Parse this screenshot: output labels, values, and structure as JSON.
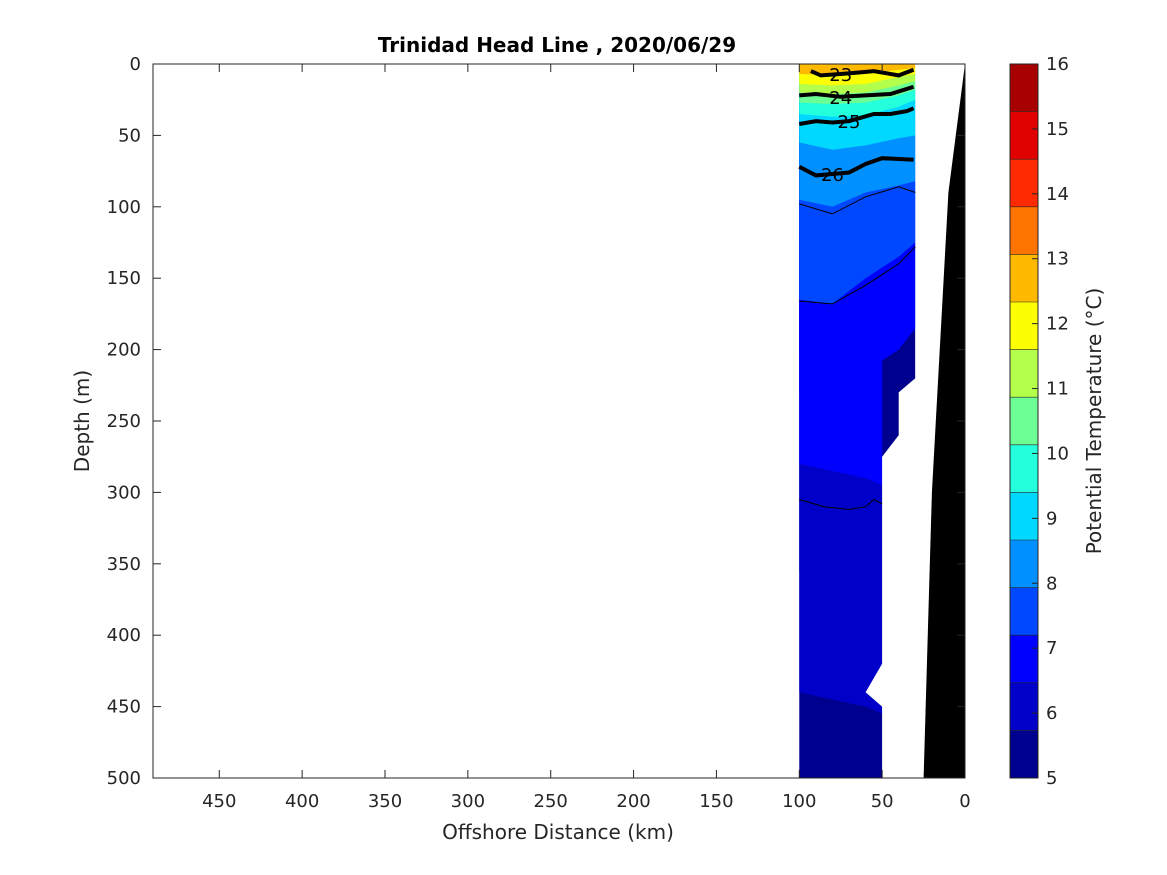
{
  "chart_data": {
    "type": "contour",
    "title": "Trinidad Head Line , 2020/06/29",
    "xlabel": "Offshore Distance (km)",
    "ylabel": "Depth (m)",
    "xlim": [
      490,
      0
    ],
    "ylim": [
      0,
      500
    ],
    "x_reversed": true,
    "y_reversed": true,
    "x_ticks": [
      450,
      400,
      350,
      300,
      250,
      200,
      150,
      100,
      50,
      0
    ],
    "y_ticks": [
      0,
      50,
      100,
      150,
      200,
      250,
      300,
      350,
      400,
      450,
      500
    ],
    "colorbar": {
      "label": "Potential Temperature (°C)",
      "min": 5,
      "max": 16,
      "ticks": [
        5,
        6,
        7,
        8,
        9,
        10,
        11,
        12,
        13,
        14,
        15,
        16
      ],
      "colors": [
        "#00008f",
        "#0000c8",
        "#0000ff",
        "#0048ff",
        "#0090ff",
        "#00d8ff",
        "#24ffdc",
        "#6cff94",
        "#b4ff4c",
        "#fcff04",
        "#ffba00",
        "#ff7300",
        "#ff2a00",
        "#e10000",
        "#a80000"
      ]
    },
    "temperature_layers": [
      {
        "temp": 5.5,
        "depth_profile": [
          [
            100,
            440
          ],
          [
            80,
            445
          ],
          [
            60,
            450
          ],
          [
            50,
            455
          ]
        ]
      },
      {
        "temp": 6.0,
        "depth_profile": [
          [
            100,
            355
          ],
          [
            80,
            365
          ],
          [
            60,
            375
          ],
          [
            50,
            380
          ]
        ]
      },
      {
        "temp": 6.5,
        "depth_profile": [
          [
            100,
            280
          ],
          [
            80,
            285
          ],
          [
            60,
            290
          ],
          [
            50,
            295
          ]
        ]
      },
      {
        "temp": 7.0,
        "depth_profile": [
          [
            100,
            230
          ],
          [
            80,
            225
          ],
          [
            60,
            215
          ],
          [
            40,
            200
          ],
          [
            30,
            185
          ]
        ]
      },
      {
        "temp": 7.5,
        "depth_profile": [
          [
            100,
            165
          ],
          [
            80,
            168
          ],
          [
            60,
            150
          ],
          [
            40,
            135
          ],
          [
            30,
            125
          ]
        ]
      },
      {
        "temp": 8.0,
        "depth_profile": [
          [
            100,
            120
          ],
          [
            80,
            125
          ],
          [
            60,
            110
          ],
          [
            40,
            100
          ],
          [
            30,
            95
          ]
        ]
      },
      {
        "temp": 8.5,
        "depth_profile": [
          [
            100,
            95
          ],
          [
            80,
            100
          ],
          [
            60,
            90
          ],
          [
            40,
            85
          ],
          [
            30,
            82
          ]
        ]
      },
      {
        "temp": 9.0,
        "depth_profile": [
          [
            100,
            72
          ],
          [
            80,
            80
          ],
          [
            60,
            72
          ],
          [
            40,
            68
          ],
          [
            30,
            66
          ]
        ]
      },
      {
        "temp": 9.5,
        "depth_profile": [
          [
            100,
            55
          ],
          [
            80,
            60
          ],
          [
            60,
            57
          ],
          [
            40,
            52
          ],
          [
            30,
            50
          ]
        ]
      },
      {
        "temp": 10.0,
        "depth_profile": [
          [
            100,
            45
          ],
          [
            80,
            48
          ],
          [
            60,
            46
          ],
          [
            40,
            42
          ],
          [
            30,
            40
          ]
        ]
      },
      {
        "temp": 11.0,
        "depth_profile": [
          [
            100,
            35
          ],
          [
            80,
            37
          ],
          [
            60,
            36
          ],
          [
            40,
            30
          ],
          [
            30,
            25
          ]
        ]
      },
      {
        "temp": 12.0,
        "depth_profile": [
          [
            100,
            27
          ],
          [
            80,
            28
          ],
          [
            60,
            27
          ],
          [
            40,
            22
          ],
          [
            30,
            18
          ]
        ]
      },
      {
        "temp": 13.0,
        "depth_profile": [
          [
            100,
            20
          ],
          [
            80,
            21
          ],
          [
            60,
            20
          ],
          [
            40,
            15
          ],
          [
            30,
            12
          ]
        ]
      },
      {
        "temp": 14.0,
        "depth_profile": [
          [
            100,
            14
          ],
          [
            80,
            15
          ],
          [
            60,
            14
          ],
          [
            40,
            9
          ],
          [
            30,
            7
          ]
        ]
      },
      {
        "temp": 15.0,
        "depth_profile": [
          [
            100,
            7
          ],
          [
            80,
            8
          ],
          [
            60,
            7
          ],
          [
            40,
            4
          ],
          [
            30,
            3
          ]
        ]
      }
    ],
    "density_contours": [
      {
        "label": "23",
        "line_width": "thick",
        "points": [
          [
            93,
            5
          ],
          [
            87,
            8
          ],
          [
            75,
            7
          ],
          [
            65,
            6
          ],
          [
            55,
            5
          ],
          [
            40,
            8
          ],
          [
            31,
            4
          ]
        ]
      },
      {
        "label": "24",
        "line_width": "thick",
        "points": [
          [
            100,
            22
          ],
          [
            90,
            21
          ],
          [
            75,
            23
          ],
          [
            60,
            22
          ],
          [
            45,
            21
          ],
          [
            31,
            16
          ]
        ]
      },
      {
        "label": "25",
        "line_width": "thick",
        "points": [
          [
            100,
            42
          ],
          [
            90,
            40
          ],
          [
            80,
            41
          ],
          [
            70,
            40
          ],
          [
            55,
            35
          ],
          [
            45,
            35
          ],
          [
            35,
            33
          ],
          [
            31,
            31
          ]
        ]
      },
      {
        "label": "26",
        "line_width": "thick",
        "points": [
          [
            100,
            72
          ],
          [
            90,
            78
          ],
          [
            80,
            77
          ],
          [
            70,
            76
          ],
          [
            60,
            70
          ],
          [
            50,
            66
          ],
          [
            31,
            67
          ]
        ]
      },
      {
        "label": "",
        "line_width": "thin",
        "points": [
          [
            100,
            98
          ],
          [
            80,
            105
          ],
          [
            60,
            93
          ],
          [
            40,
            86
          ],
          [
            30,
            90
          ]
        ]
      },
      {
        "label": "",
        "line_width": "thin",
        "points": [
          [
            100,
            166
          ],
          [
            80,
            168
          ],
          [
            60,
            155
          ],
          [
            40,
            140
          ],
          [
            30,
            128
          ]
        ]
      },
      {
        "label": "",
        "line_width": "thin",
        "points": [
          [
            100,
            305
          ],
          [
            85,
            310
          ],
          [
            70,
            312
          ],
          [
            60,
            310
          ],
          [
            55,
            305
          ],
          [
            50,
            308
          ]
        ]
      }
    ],
    "data_extent": {
      "offshore_edge_km": 100,
      "nearshore_edge_profile": [
        [
          30,
          0
        ],
        [
          30,
          220
        ],
        [
          40,
          230
        ],
        [
          40,
          260
        ],
        [
          50,
          275
        ],
        [
          50,
          420
        ],
        [
          60,
          440
        ],
        [
          50,
          450
        ],
        [
          50,
          500
        ]
      ]
    },
    "bathymetry": {
      "color": "#000000",
      "profile": [
        [
          0,
          0
        ],
        [
          10,
          90
        ],
        [
          20,
          300
        ],
        [
          25,
          500
        ]
      ]
    }
  }
}
